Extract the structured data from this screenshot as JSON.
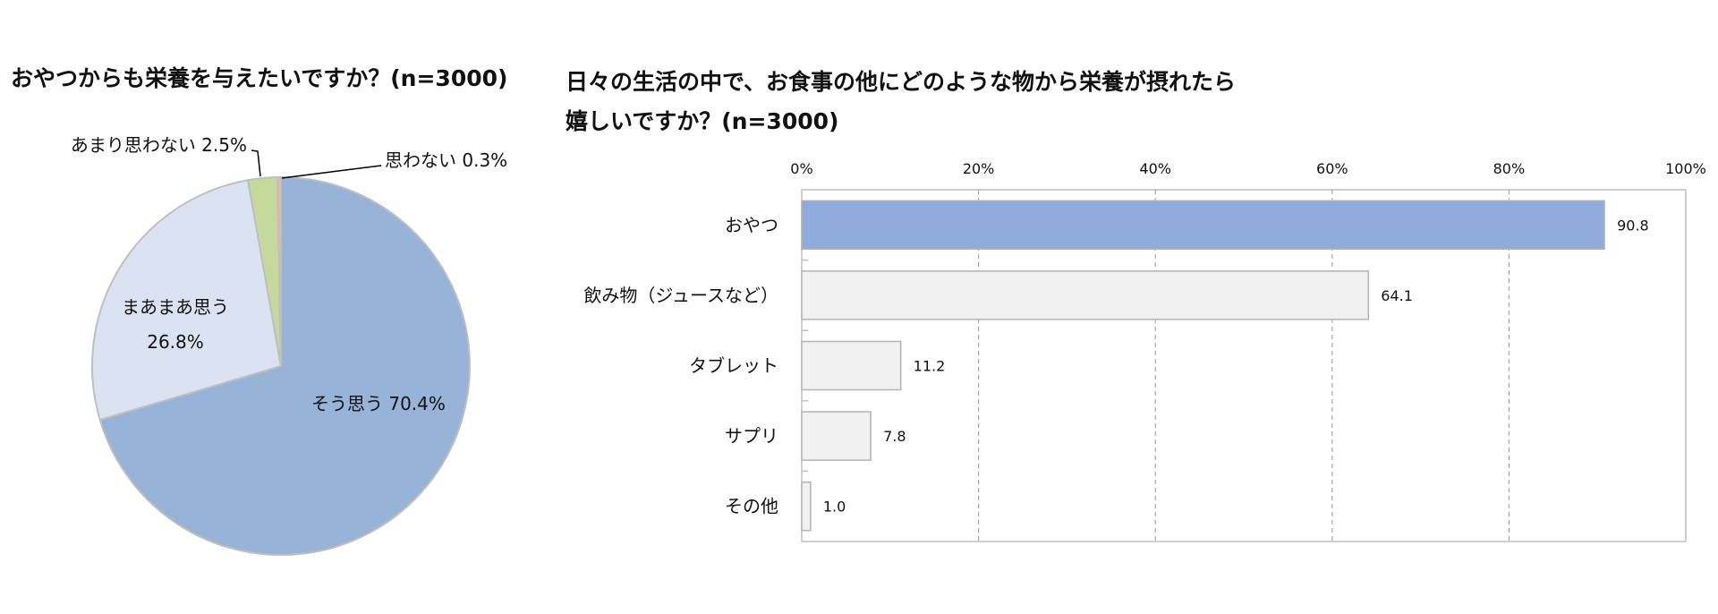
{
  "pie_title": "おやつからも栄養を与えたいですか？(n=3000)",
  "bar_title_line1": "日々の生活の中で、お食事の他にどのような物から栄養が摂れたら",
  "bar_title_line2": "嬉しいですか？(n=3000)",
  "chart_data": [
    {
      "type": "pie",
      "title": "おやつからも栄養を与えたいですか？(n=3000)",
      "slices": [
        {
          "label": "そう思う",
          "value": 70.4,
          "text": "そう思う 70.4%",
          "color": "#97b3d8"
        },
        {
          "label": "まあまあ思う",
          "value": 26.8,
          "text_line1": "まあまあ思う",
          "text_line2": "26.8%",
          "color": "#dbe3f3"
        },
        {
          "label": "あまり思わない",
          "value": 2.5,
          "text": "あまり思わない 2.5%",
          "color": "#c5d99d"
        },
        {
          "label": "思わない",
          "value": 0.3,
          "text": "思わない 0.3%",
          "color": "#e6b8a8"
        }
      ]
    },
    {
      "type": "bar",
      "orientation": "horizontal",
      "title": "日々の生活の中で、お食事の他にどのような物から栄養が摂れたら嬉しいですか？(n=3000)",
      "categories": [
        "おやつ",
        "飲み物（ジュースなど）",
        "タブレット",
        "サプリ",
        "その他"
      ],
      "values": [
        90.8,
        64.1,
        11.2,
        7.8,
        1.0
      ],
      "value_labels": [
        "90.8",
        "64.1",
        "11.2",
        "7.8",
        "1.0"
      ],
      "colors": [
        "#90acdc",
        "#f1f1f1",
        "#f1f1f1",
        "#f1f1f1",
        "#f1f1f1"
      ],
      "xlim": [
        0,
        100
      ],
      "ticks": [
        "0%",
        "20%",
        "40%",
        "60%",
        "80%",
        "100%"
      ],
      "grid": true
    }
  ]
}
